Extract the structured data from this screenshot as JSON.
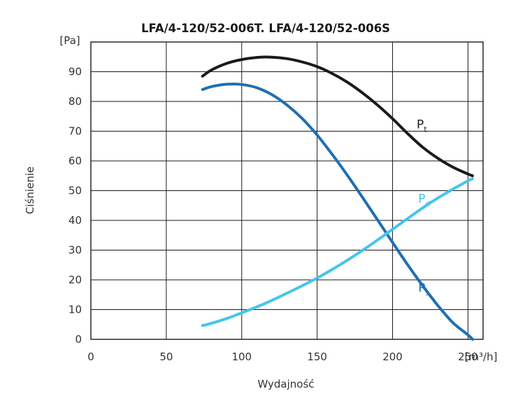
{
  "chart_data": {
    "type": "line",
    "title": "LFA/4-120/52-006T. LFA/4-120/52-006S",
    "xlabel": "Wydajność",
    "ylabel": "Ciśnienie",
    "x_unit": "[m³/h]",
    "y_unit": "[Pa]",
    "xlim": [
      0,
      260
    ],
    "ylim": [
      0,
      100
    ],
    "x_ticks": [
      "0",
      "50",
      "100",
      "150",
      "200",
      "250"
    ],
    "y_ticks": [
      "0",
      "10",
      "20",
      "30",
      "40",
      "50",
      "60",
      "70",
      "80",
      "90"
    ],
    "grid": true,
    "series": [
      {
        "name": "Pt",
        "label_main": "P",
        "label_sub": "t",
        "color": "#1a1a1a",
        "label_at": [
          216,
          71
        ],
        "x": [
          74,
          80,
          90,
          100,
          110,
          120,
          130,
          140,
          150,
          160,
          170,
          180,
          190,
          200,
          210,
          220,
          230,
          240,
          250,
          253
        ],
        "y": [
          88.5,
          90.6,
          92.8,
          94.1,
          94.8,
          94.9,
          94.4,
          93.3,
          91.7,
          89.4,
          86.5,
          82.9,
          78.8,
          74.2,
          69.2,
          64.6,
          60.9,
          57.9,
          55.6,
          55.0
        ]
      },
      {
        "name": "Ps",
        "label_main": "P",
        "label_sub": "s",
        "color": "#1f6fb2",
        "label_at": [
          217,
          16
        ],
        "x": [
          74,
          80,
          90,
          100,
          110,
          120,
          130,
          140,
          150,
          160,
          170,
          180,
          190,
          200,
          210,
          220,
          230,
          240,
          250,
          253
        ],
        "y": [
          84.0,
          85.0,
          85.8,
          85.7,
          84.6,
          82.3,
          78.8,
          74.3,
          68.7,
          62.2,
          55.2,
          47.8,
          40.2,
          32.6,
          25.1,
          18.0,
          11.4,
          5.6,
          1.5,
          0.0
        ]
      },
      {
        "name": "Pd",
        "label_main": "P",
        "label_sub": "d",
        "color": "#45c4ec",
        "label_at": [
          217,
          46
        ],
        "x": [
          74,
          80,
          90,
          100,
          110,
          120,
          130,
          140,
          150,
          160,
          170,
          180,
          190,
          200,
          210,
          220,
          230,
          240,
          250,
          253
        ],
        "y": [
          4.6,
          5.4,
          7.0,
          8.9,
          10.9,
          13.1,
          15.5,
          18.0,
          20.6,
          23.5,
          26.6,
          29.9,
          33.4,
          37.0,
          40.6,
          44.2,
          47.5,
          50.5,
          53.3,
          54.0
        ]
      }
    ]
  }
}
